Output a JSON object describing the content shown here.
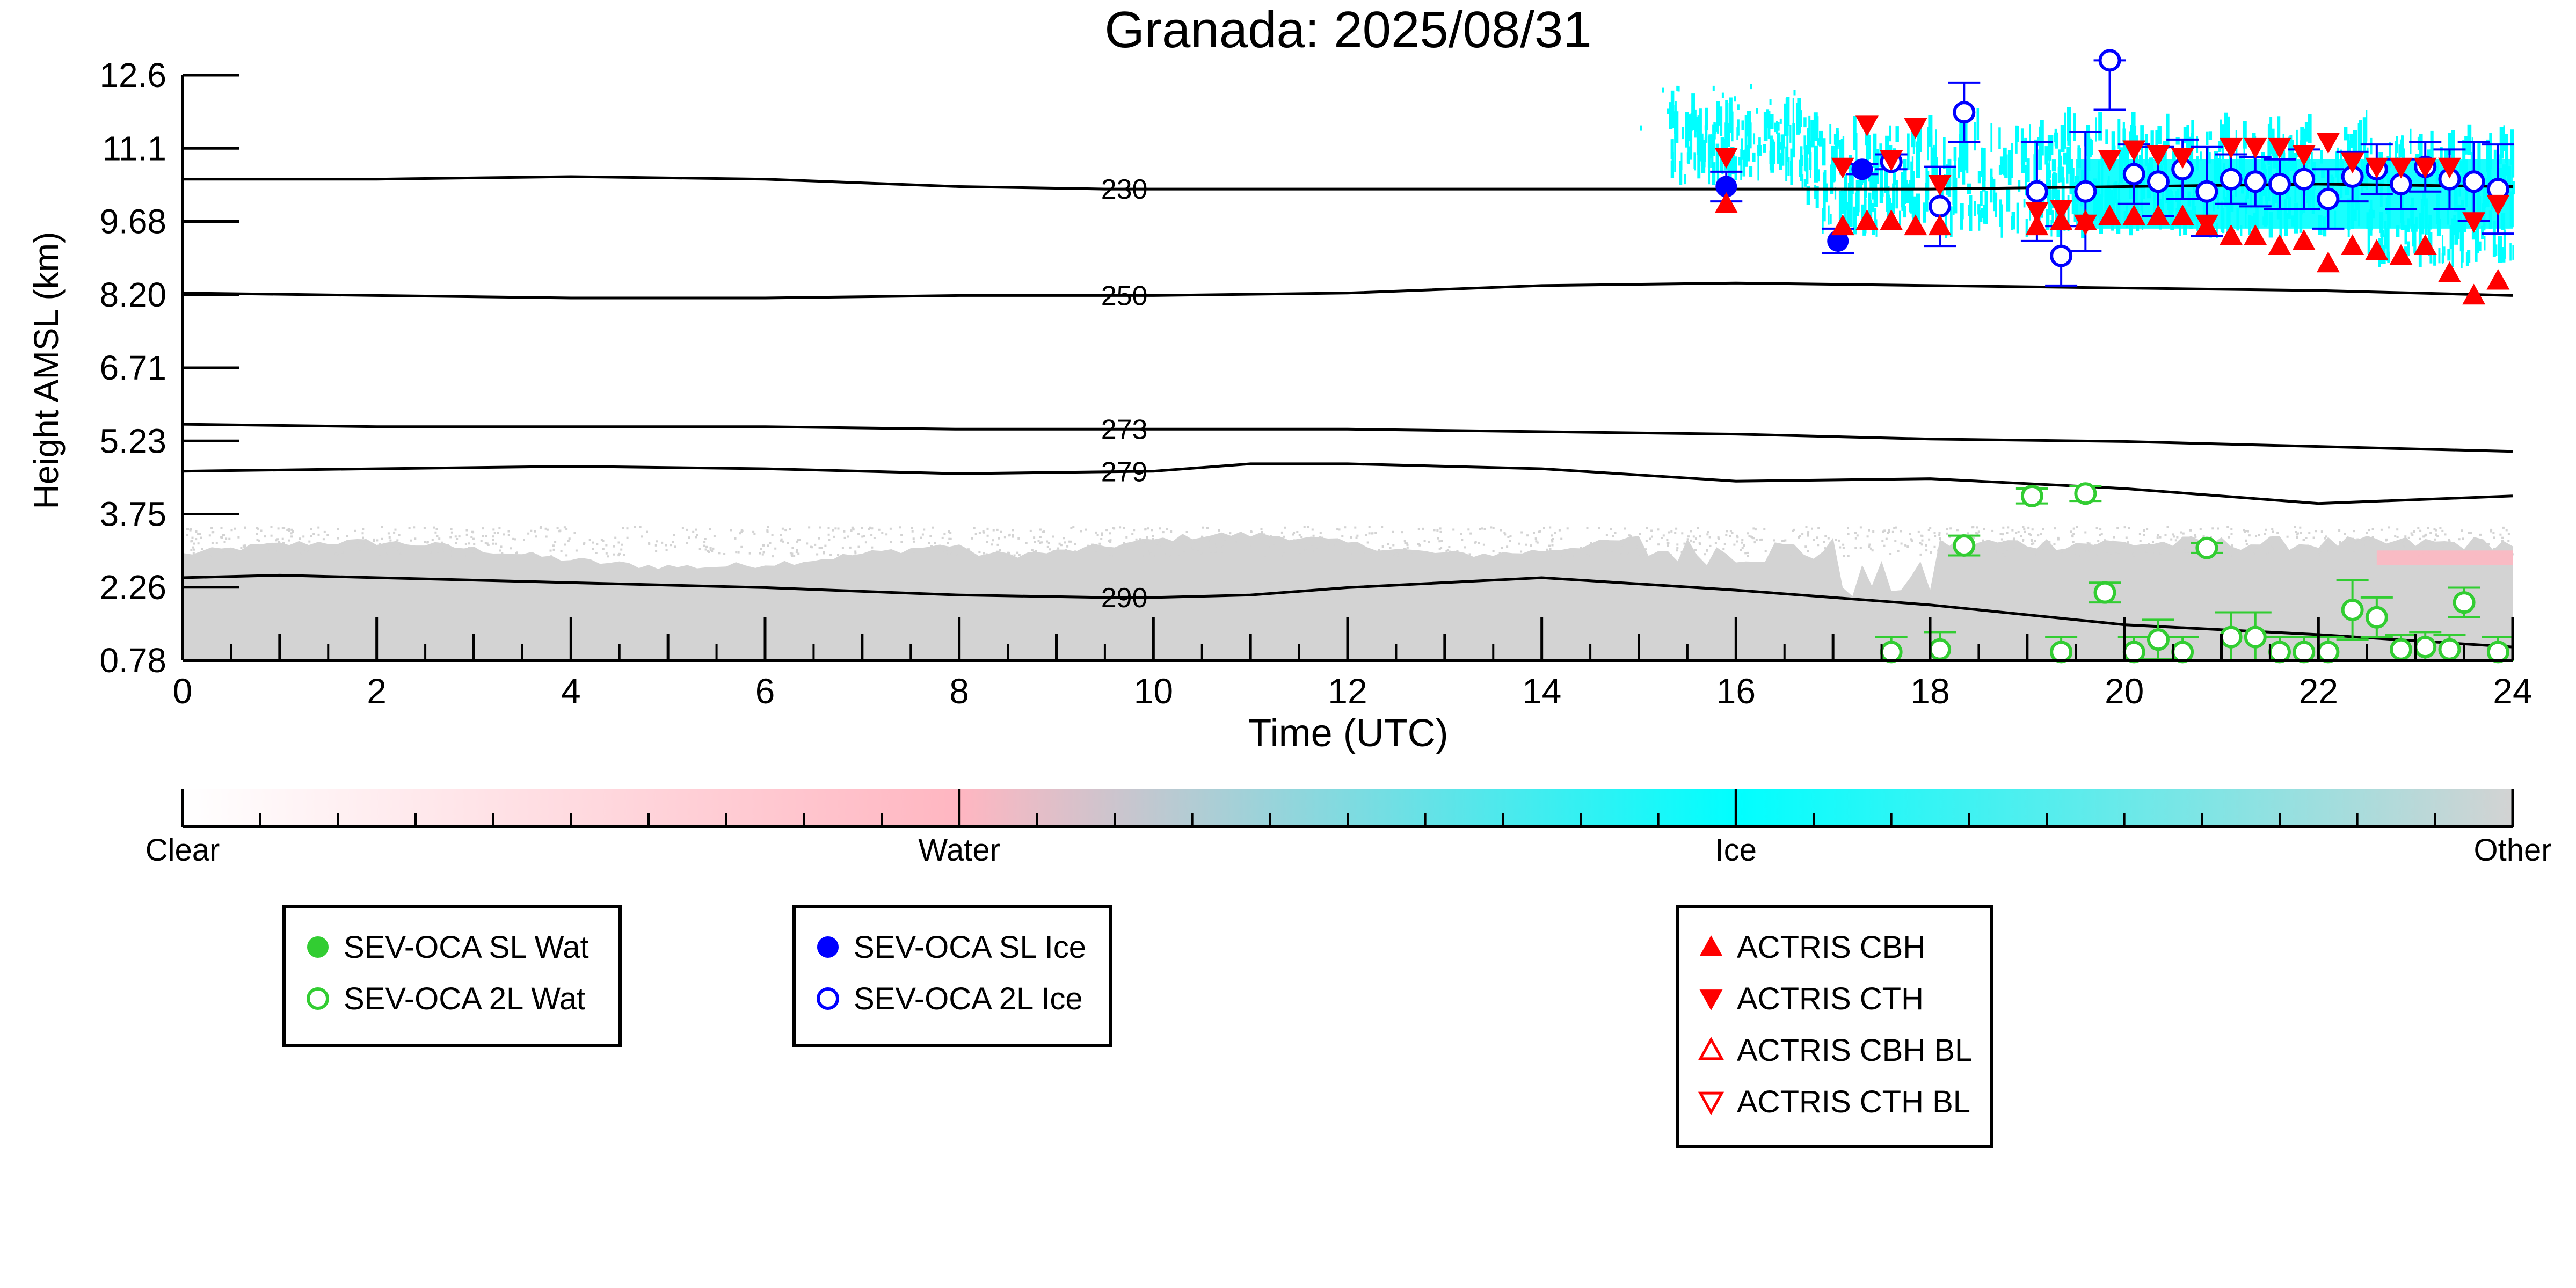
{
  "chart_data": [
    {
      "type": "scatter",
      "title": "Granada: 2025/08/31",
      "xlabel": "Time (UTC)",
      "ylabel": "Height AMSL (km)",
      "xlim": [
        0,
        24
      ],
      "ylim": [
        0.78,
        12.6
      ],
      "x_ticks": [
        "0",
        "2",
        "4",
        "6",
        "8",
        "10",
        "12",
        "14",
        "16",
        "18",
        "20",
        "22",
        "24"
      ],
      "y_ticks": [
        "0.78",
        "2.26",
        "3.75",
        "5.23",
        "6.71",
        "8.20",
        "9.68",
        "11.1",
        "12.6"
      ],
      "grid": false,
      "background_fields": [
        {
          "class": "Other",
          "color": "#d3d3d3",
          "description": "boundary layer aerosol/other up to ~3 km all day"
        },
        {
          "class": "Ice",
          "color": "#00ffff",
          "description": "cirrus between ~9 and ~11.5 km from ~15.3 h to 24 h"
        },
        {
          "class": "Water",
          "color": "#ffb6c1",
          "description": "small patch near 2.9 km around 22.6-24 h"
        }
      ],
      "temperature_contours": [
        {
          "label": "230",
          "x": [
            0,
            2,
            4,
            6,
            8,
            9.5,
            10,
            12,
            14,
            16,
            18,
            20,
            22,
            24
          ],
          "y": [
            10.5,
            10.5,
            10.55,
            10.5,
            10.35,
            10.3,
            10.3,
            10.3,
            10.3,
            10.3,
            10.3,
            10.35,
            10.4,
            10.35
          ]
        },
        {
          "label": "250",
          "x": [
            0,
            2,
            4,
            6,
            8,
            10,
            12,
            14,
            16,
            18,
            20,
            22,
            24
          ],
          "y": [
            8.2,
            8.15,
            8.1,
            8.1,
            8.15,
            8.15,
            8.2,
            8.35,
            8.4,
            8.35,
            8.3,
            8.25,
            8.15
          ]
        },
        {
          "label": "273",
          "x": [
            0,
            2,
            4,
            6,
            8,
            10,
            12,
            14,
            16,
            18,
            20,
            22,
            24
          ],
          "y": [
            5.55,
            5.5,
            5.5,
            5.5,
            5.45,
            5.45,
            5.45,
            5.4,
            5.35,
            5.25,
            5.2,
            5.1,
            5.0
          ]
        },
        {
          "label": "279",
          "x": [
            0,
            2,
            4,
            6,
            8,
            10,
            11,
            12,
            14,
            16,
            18,
            20,
            22,
            24
          ],
          "y": [
            4.6,
            4.65,
            4.7,
            4.65,
            4.55,
            4.6,
            4.75,
            4.75,
            4.65,
            4.4,
            4.45,
            4.25,
            3.95,
            4.1
          ]
        },
        {
          "label": "290",
          "x": [
            0,
            1,
            2,
            4,
            6,
            8,
            9.5,
            10,
            11,
            12,
            14,
            16,
            18,
            20,
            22,
            24
          ],
          "y": [
            2.45,
            2.5,
            2.45,
            2.35,
            2.25,
            2.1,
            2.05,
            2.05,
            2.1,
            2.25,
            2.45,
            2.2,
            1.9,
            1.5,
            1.3,
            1.05
          ]
        }
      ],
      "series": [
        {
          "name": "SEV-OCA SL Wat",
          "marker": "filled-circle",
          "color": "#32cd32",
          "x": [],
          "y": []
        },
        {
          "name": "SEV-OCA 2L Wat",
          "marker": "open-circle",
          "color": "#32cd32",
          "x": [
            17.6,
            18.1,
            18.35,
            19.05,
            19.35,
            19.6,
            19.8,
            20.1,
            20.35,
            20.6,
            20.85,
            21.1,
            21.35,
            21.6,
            21.85,
            22.1,
            22.35,
            22.6,
            22.85,
            23.1,
            23.35,
            23.5,
            23.85
          ],
          "y": [
            0.95,
            1.0,
            3.1,
            4.1,
            0.95,
            4.15,
            2.15,
            0.95,
            1.2,
            0.95,
            3.05,
            1.25,
            1.25,
            0.95,
            0.95,
            0.95,
            1.8,
            1.65,
            1.0,
            1.05,
            1.0,
            1.95,
            0.95
          ],
          "yerr": [
            0.3,
            0.35,
            0.2,
            0.15,
            0.3,
            0.15,
            0.2,
            0.3,
            0.4,
            0.3,
            0.1,
            0.5,
            0.5,
            0.3,
            0.3,
            0.3,
            0.6,
            0.4,
            0.3,
            0.3,
            0.3,
            0.3,
            0.3
          ]
        },
        {
          "name": "SEV-OCA SL Ice",
          "marker": "filled-circle",
          "color": "#0000ff",
          "x": [
            15.9,
            17.05,
            17.3
          ],
          "y": [
            10.35,
            9.25,
            10.7
          ],
          "yerr": [
            0.3,
            0.25,
            0.1
          ]
        },
        {
          "name": "SEV-OCA 2L Ice",
          "marker": "open-circle",
          "color": "#0000ff",
          "x": [
            17.6,
            18.1,
            18.35,
            19.1,
            19.35,
            19.6,
            19.85,
            20.1,
            20.35,
            20.6,
            20.85,
            21.1,
            21.35,
            21.6,
            21.85,
            22.1,
            22.35,
            22.6,
            22.85,
            23.1,
            23.35,
            23.6,
            23.85
          ],
          "y": [
            10.85,
            9.95,
            11.85,
            10.25,
            8.95,
            10.25,
            12.9,
            10.6,
            10.45,
            10.7,
            10.25,
            10.5,
            10.45,
            10.4,
            10.5,
            10.1,
            10.55,
            10.7,
            10.4,
            10.75,
            10.5,
            10.45,
            10.3
          ],
          "yerr": [
            0.15,
            0.8,
            0.6,
            1.0,
            0.6,
            1.2,
            1.0,
            0.6,
            0.7,
            0.6,
            0.9,
            0.5,
            0.5,
            0.5,
            0.6,
            0.6,
            0.5,
            0.5,
            0.5,
            0.5,
            0.6,
            0.8,
            0.9
          ]
        },
        {
          "name": "ACTRIS CBH",
          "marker": "triangle-up",
          "color": "#ff0000",
          "x": [
            15.9,
            17.1,
            17.35,
            17.6,
            17.85,
            18.1,
            19.1,
            19.35,
            19.6,
            19.85,
            20.1,
            20.35,
            20.6,
            20.85,
            21.1,
            21.35,
            21.6,
            21.85,
            22.1,
            22.35,
            22.6,
            22.85,
            23.1,
            23.35,
            23.6,
            23.85
          ],
          "y": [
            10.0,
            9.55,
            9.65,
            9.65,
            9.55,
            9.55,
            9.55,
            9.65,
            9.65,
            9.75,
            9.75,
            9.75,
            9.75,
            9.55,
            9.35,
            9.35,
            9.15,
            9.25,
            8.8,
            9.15,
            9.05,
            8.95,
            9.15,
            8.6,
            8.15,
            8.45
          ]
        },
        {
          "name": "ACTRIS CTH",
          "marker": "triangle-down",
          "color": "#ff0000",
          "x": [
            15.9,
            17.1,
            17.35,
            17.6,
            17.85,
            18.1,
            19.1,
            19.35,
            19.6,
            19.85,
            20.1,
            20.35,
            20.6,
            20.85,
            21.1,
            21.35,
            21.6,
            21.85,
            22.1,
            22.35,
            22.6,
            22.85,
            23.1,
            23.35,
            23.6,
            23.85
          ],
          "y": [
            10.95,
            10.75,
            11.6,
            10.9,
            11.55,
            10.4,
            9.85,
            9.9,
            9.6,
            10.9,
            11.1,
            11.0,
            10.95,
            9.6,
            11.15,
            11.15,
            11.15,
            11.0,
            11.25,
            10.85,
            10.75,
            10.75,
            10.75,
            10.75,
            9.65,
            10.0
          ]
        },
        {
          "name": "ACTRIS CBH BL",
          "marker": "open-triangle-up",
          "color": "#ff0000",
          "x": [],
          "y": []
        },
        {
          "name": "ACTRIS CTH BL",
          "marker": "open-triangle-down",
          "color": "#ff0000",
          "x": [],
          "y": []
        }
      ]
    },
    {
      "type": "colorbar",
      "labels": [
        "Clear",
        "Water",
        "Ice",
        "Other"
      ],
      "colors": [
        "#ffffff",
        "#ffb6c1",
        "#00ffff",
        "#d3d3d3"
      ]
    }
  ],
  "legends": [
    {
      "items": [
        {
          "label": "SEV-OCA SL Wat",
          "marker": "filled-circle",
          "color": "#32cd32"
        },
        {
          "label": "SEV-OCA 2L Wat",
          "marker": "open-circle",
          "color": "#32cd32"
        }
      ]
    },
    {
      "items": [
        {
          "label": "SEV-OCA SL Ice",
          "marker": "filled-circle",
          "color": "#0000ff"
        },
        {
          "label": "SEV-OCA 2L Ice",
          "marker": "open-circle",
          "color": "#0000ff"
        }
      ]
    },
    {
      "items": [
        {
          "label": "ACTRIS CBH",
          "marker": "triangle-up",
          "color": "#ff0000"
        },
        {
          "label": "ACTRIS CTH",
          "marker": "triangle-down",
          "color": "#ff0000"
        },
        {
          "label": "ACTRIS CBH BL",
          "marker": "open-triangle-up",
          "color": "#ff0000"
        },
        {
          "label": "ACTRIS CTH BL",
          "marker": "open-triangle-down",
          "color": "#ff0000"
        }
      ]
    }
  ]
}
